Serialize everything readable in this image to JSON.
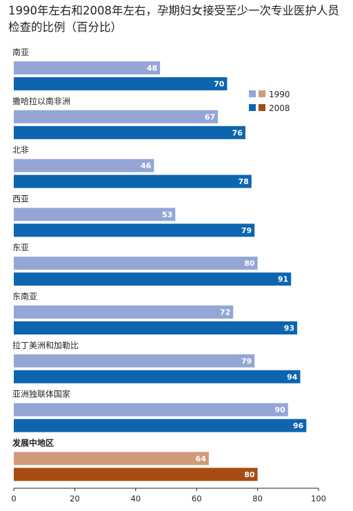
{
  "chart_data": {
    "type": "bar",
    "orientation": "horizontal",
    "title": "1990年左右和2008年左右，孕期妇女接受至少一次专业医护人员检查的比例（百分比）",
    "categories": [
      "南亚",
      "撒哈拉以南非洲",
      "北非",
      "西亚",
      "东亚",
      "东南亚",
      "拉丁美洲和加勒比",
      "亚洲独联体国家",
      "发展中地区"
    ],
    "highlight_category": "发展中地区",
    "series": [
      {
        "name": "1990",
        "values": [
          48,
          67,
          46,
          53,
          80,
          72,
          79,
          90,
          64
        ]
      },
      {
        "name": "2008",
        "values": [
          70,
          76,
          78,
          79,
          91,
          93,
          94,
          96,
          80
        ]
      }
    ],
    "x_ticks": [
      "0",
      "20",
      "40",
      "60",
      "80",
      "100"
    ],
    "xlim": [
      0,
      100
    ],
    "legend": {
      "placement": "top-right",
      "entries": [
        "1990",
        "2008"
      ]
    },
    "grid": false,
    "colors": {
      "series_1990": "#94a6d6",
      "series_2008": "#0d65b0",
      "highlight_1990": "#d19a78",
      "highlight_2008": "#a84b12",
      "legend_1990": "#d19a78",
      "legend_2008": "#a84b12",
      "value_text": "#ffffff",
      "text": "#231f20"
    }
  }
}
